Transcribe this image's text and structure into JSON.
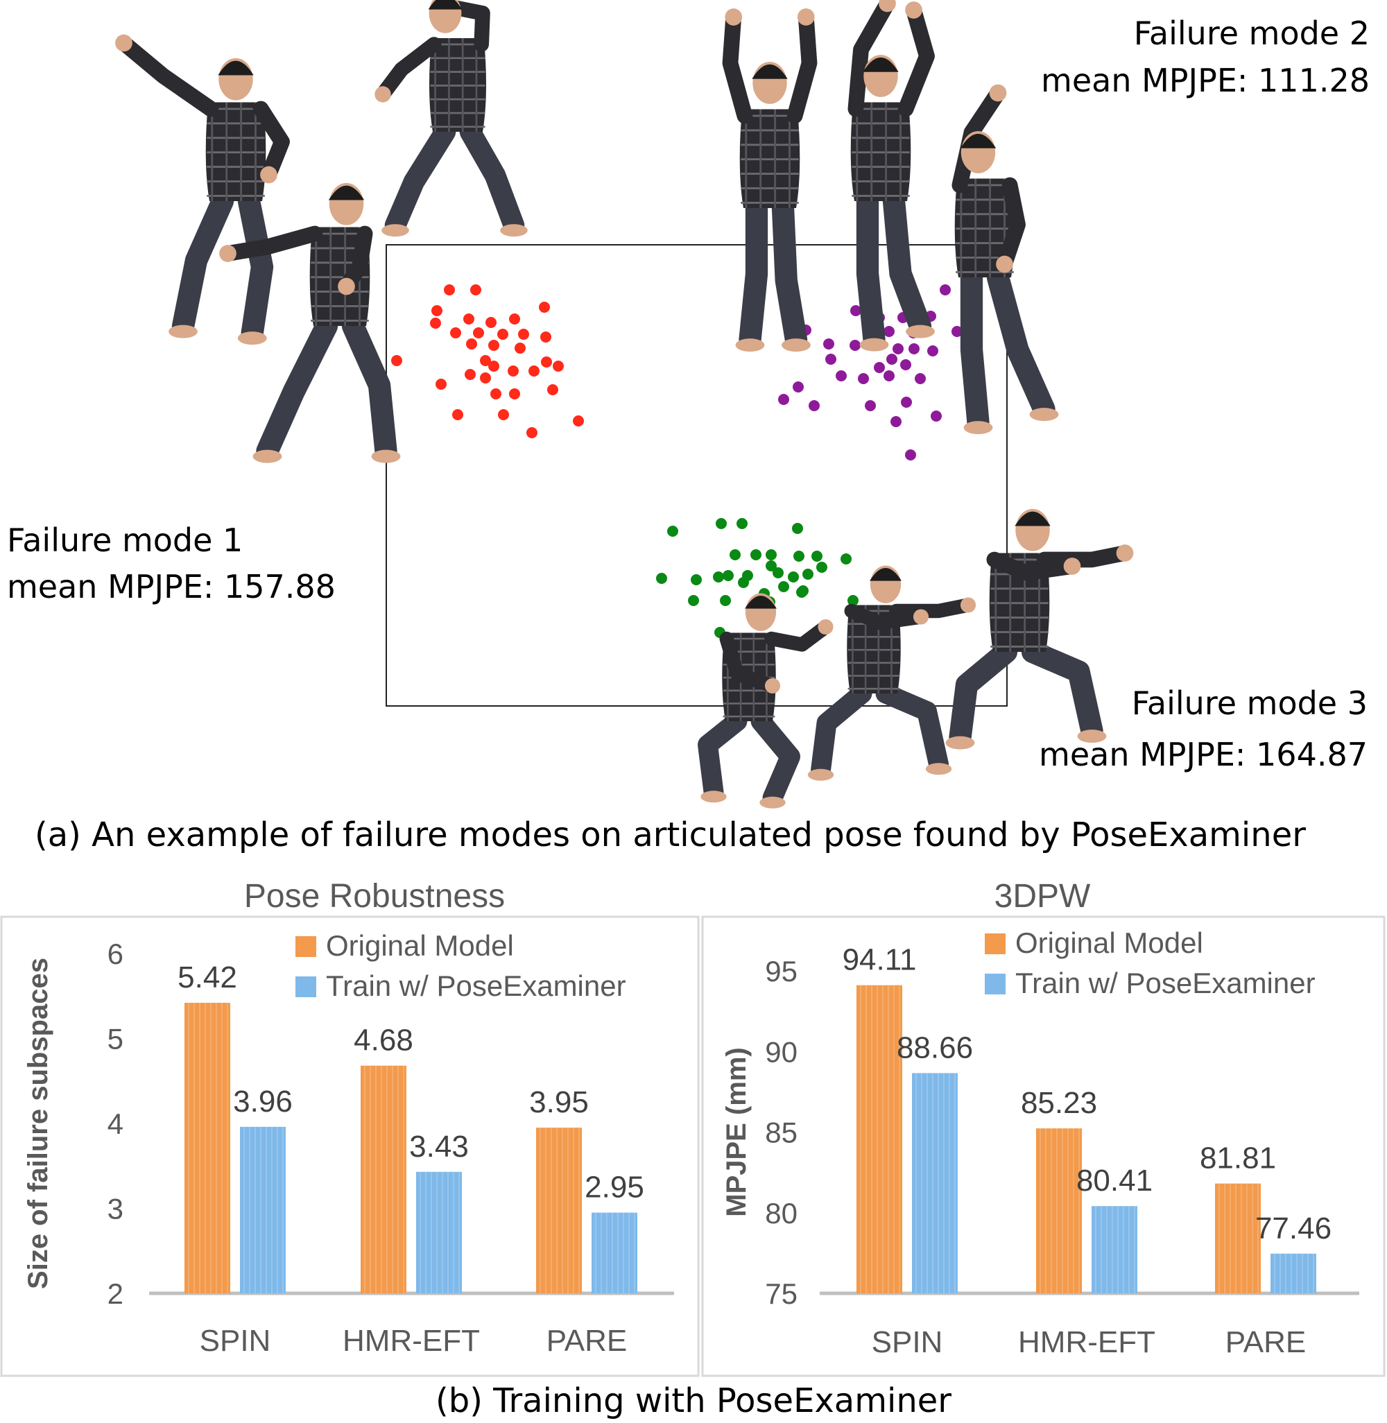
{
  "part_a": {
    "caption": "(a) An example of failure modes on articulated pose found by PoseExaminer",
    "modes": [
      {
        "title": "Failure mode 1",
        "metric": "mean MPJPE: 157.88",
        "color": "#ff2a1a"
      },
      {
        "title": "Failure mode 2",
        "metric": "mean MPJPE: 111.28",
        "color": "#8e1a9a"
      },
      {
        "title": "Failure mode 3",
        "metric": "mean MPJPE: 164.87",
        "color": "#0a8a14"
      }
    ]
  },
  "part_b": {
    "caption": "(b) Training with PoseExaminer"
  },
  "colors": {
    "original": "#f39a4c",
    "trained": "#7fb9ea",
    "axis": "#bfbfbf"
  },
  "chart_data": [
    {
      "type": "bar",
      "title": "Pose Robustness",
      "ylabel": "Size of failure subspaces",
      "ylim": [
        2,
        6
      ],
      "yticks": [
        "2",
        "3",
        "4",
        "5",
        "6"
      ],
      "categories": [
        "SPIN",
        "HMR-EFT",
        "PARE"
      ],
      "series": [
        {
          "name": "Original Model",
          "values": [
            5.42,
            4.68,
            3.95
          ],
          "labels": [
            "5.42",
            "4.68",
            "3.95"
          ]
        },
        {
          "name": "Train w/ PoseExaminer",
          "values": [
            3.96,
            3.43,
            2.95
          ],
          "labels": [
            "3.96",
            "3.43",
            "2.95"
          ]
        }
      ],
      "legend": "top-right"
    },
    {
      "type": "bar",
      "title": "3DPW",
      "ylabel": "MPJPE (mm)",
      "ylim": [
        75,
        95
      ],
      "yticks": [
        "75",
        "80",
        "85",
        "90",
        "95"
      ],
      "categories": [
        "SPIN",
        "HMR-EFT",
        "PARE"
      ],
      "series": [
        {
          "name": "Original Model",
          "values": [
            94.11,
            85.23,
            81.81
          ],
          "labels": [
            "94.11",
            "85.23",
            "81.81"
          ]
        },
        {
          "name": "Train w/ PoseExaminer",
          "values": [
            88.66,
            80.41,
            77.46
          ],
          "labels": [
            "88.66",
            "80.41",
            "77.46"
          ]
        }
      ],
      "legend": "top-right"
    }
  ]
}
